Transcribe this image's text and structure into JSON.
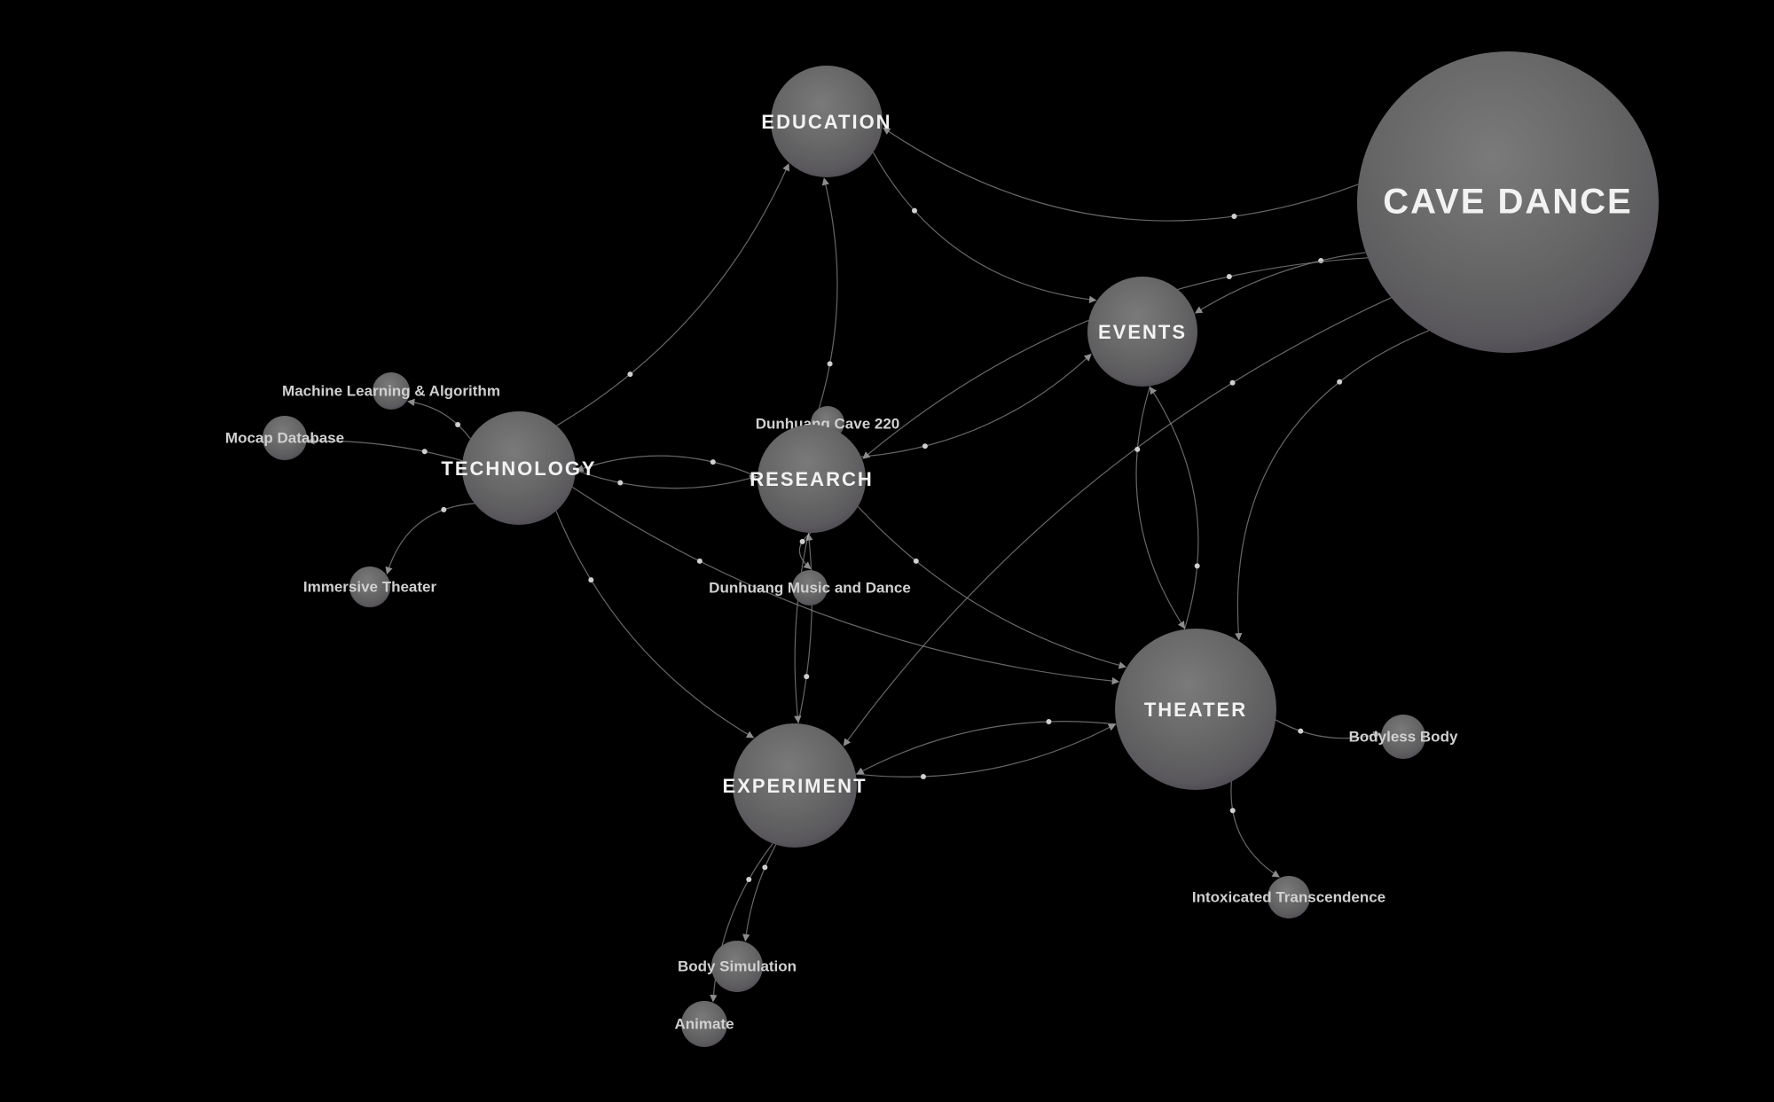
{
  "nodes": [
    {
      "id": "cave_dance",
      "label": "CAVE DANCE",
      "kind": "major"
    },
    {
      "id": "education",
      "label": "EDUCATION",
      "kind": "major"
    },
    {
      "id": "events",
      "label": "EVENTS",
      "kind": "major"
    },
    {
      "id": "technology",
      "label": "TECHNOLOGY",
      "kind": "major"
    },
    {
      "id": "research",
      "label": "RESEARCH",
      "kind": "major"
    },
    {
      "id": "theater",
      "label": "THEATER",
      "kind": "major"
    },
    {
      "id": "experiment",
      "label": "EXPERIMENT",
      "kind": "major"
    },
    {
      "id": "ml",
      "label": "Machine Learning & Algorithm",
      "kind": "minor"
    },
    {
      "id": "mocap",
      "label": "Mocap Database",
      "kind": "minor"
    },
    {
      "id": "immersive",
      "label": "Immersive Theater",
      "kind": "minor"
    },
    {
      "id": "cave220",
      "label": "Dunhuang Cave 220",
      "kind": "minor"
    },
    {
      "id": "music",
      "label": "Dunhuang Music and Dance",
      "kind": "minor"
    },
    {
      "id": "bodyless",
      "label": "Bodyless Body",
      "kind": "minor"
    },
    {
      "id": "intox",
      "label": "Intoxicated Transcendence",
      "kind": "minor"
    },
    {
      "id": "bodysim",
      "label": "Body Simulation",
      "kind": "minor"
    },
    {
      "id": "animate",
      "label": "Animate",
      "kind": "minor"
    }
  ],
  "edges": [
    [
      "cave_dance",
      "education"
    ],
    [
      "cave_dance",
      "events"
    ],
    [
      "cave_dance",
      "research"
    ],
    [
      "cave_dance",
      "theater"
    ],
    [
      "cave_dance",
      "experiment"
    ],
    [
      "education",
      "events"
    ],
    [
      "technology",
      "education"
    ],
    [
      "research",
      "education"
    ],
    [
      "research",
      "events"
    ],
    [
      "research",
      "technology"
    ],
    [
      "technology",
      "research"
    ],
    [
      "technology",
      "experiment"
    ],
    [
      "technology",
      "theater"
    ],
    [
      "technology",
      "ml"
    ],
    [
      "technology",
      "mocap"
    ],
    [
      "technology",
      "immersive"
    ],
    [
      "research",
      "cave220"
    ],
    [
      "research",
      "music"
    ],
    [
      "research",
      "experiment"
    ],
    [
      "experiment",
      "research"
    ],
    [
      "research",
      "theater"
    ],
    [
      "theater",
      "experiment"
    ],
    [
      "experiment",
      "theater"
    ],
    [
      "theater",
      "events"
    ],
    [
      "events",
      "theater"
    ],
    [
      "theater",
      "bodyless"
    ],
    [
      "theater",
      "intox"
    ],
    [
      "experiment",
      "bodysim"
    ],
    [
      "experiment",
      "animate"
    ]
  ],
  "colors": {
    "background": "#000000",
    "node_fill": "#6a6a6a",
    "edge": "#8a8a8a",
    "label_major": "#f2f2f2",
    "label_minor": "#d0d0d0"
  }
}
